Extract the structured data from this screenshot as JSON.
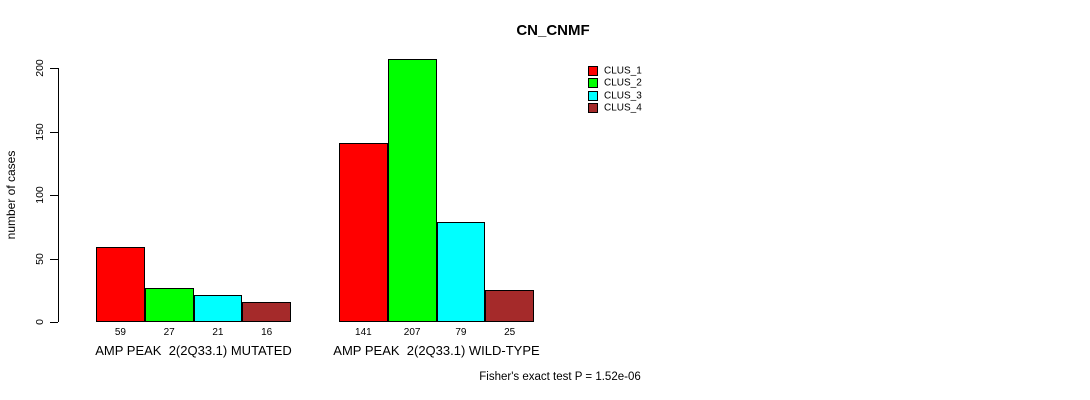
{
  "title": "CN_CNMF",
  "ylabel": "number of cases",
  "chart_data": {
    "type": "bar",
    "title": "CN_CNMF",
    "xlabel": "",
    "ylabel": "number of cases",
    "ylim": [
      0,
      200
    ],
    "yticks": [
      0,
      50,
      100,
      150,
      200
    ],
    "grid": false,
    "legend_position": "top-right",
    "categories": [
      "AMP PEAK  2(2Q33.1) MUTATED",
      "AMP PEAK  2(2Q33.1) WILD-TYPE"
    ],
    "series": [
      {
        "name": "CLUS_1",
        "color": "#FF0000",
        "values": [
          59,
          141
        ]
      },
      {
        "name": "CLUS_2",
        "color": "#00FF00",
        "values": [
          27,
          207
        ]
      },
      {
        "name": "CLUS_3",
        "color": "#00FFFF",
        "values": [
          21,
          79
        ]
      },
      {
        "name": "CLUS_4",
        "color": "#A52A2A",
        "values": [
          16,
          25
        ]
      }
    ],
    "annotation": "Fisher's exact test P = 1.52e-06"
  }
}
